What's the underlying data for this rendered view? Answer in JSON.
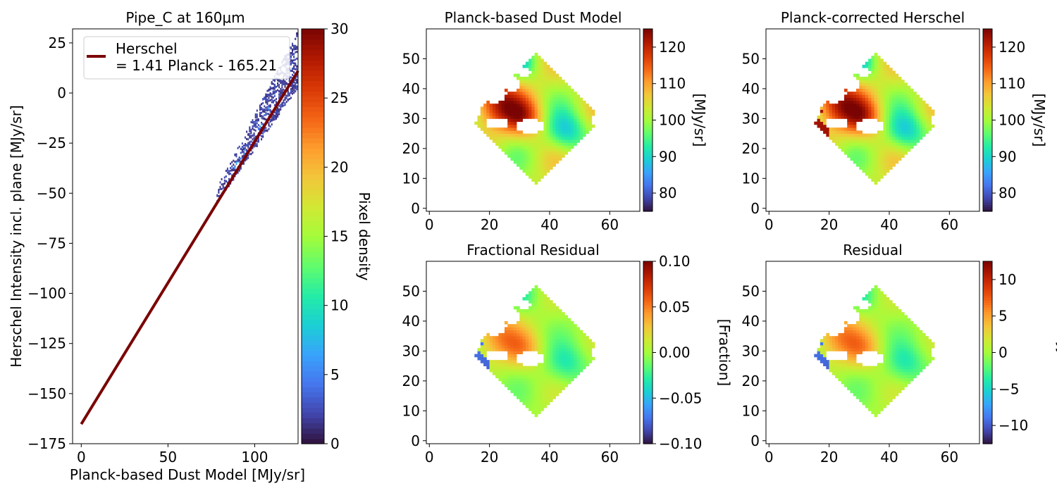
{
  "colormap": [
    "#30123b",
    "#4145ab",
    "#4675ed",
    "#39a2fc",
    "#1bcfd4",
    "#24eca6",
    "#61fc6c",
    "#a4fc3b",
    "#d1e834",
    "#f3c63a",
    "#fe9b2d",
    "#f36315",
    "#d93806",
    "#b11901",
    "#7a0403"
  ],
  "chart_data": [
    {
      "id": "scatter",
      "type": "heatmap",
      "title": "Pipe_C at 160μm",
      "xlabel": "Planck-based Dust Model [MJy/sr]",
      "ylabel": "Herschel Intensity incl. plane [MJy/sr]",
      "xlim": [
        -5,
        125
      ],
      "ylim": [
        -175,
        32
      ],
      "xticks": [
        0,
        50,
        100
      ],
      "yticks": [
        -175,
        -150,
        -125,
        -100,
        -75,
        -50,
        -25,
        0,
        25
      ],
      "fit": {
        "slope": 1.41,
        "intercept": -165.21,
        "x": [
          0,
          125
        ],
        "color": "#7a0403"
      },
      "legend": {
        "line1": "Herschel",
        "line2": "= 1.41 Planck - 165.21",
        "position": "upper left"
      },
      "density_band": {
        "x_range": [
          78,
          124
        ],
        "typical_density": [
          1,
          3
        ],
        "peak_density": 8
      },
      "colorbar": {
        "label": "Pixel density",
        "range": [
          0,
          30
        ],
        "ticks": [
          0,
          5,
          10,
          15,
          20,
          25,
          30
        ]
      }
    },
    {
      "id": "model",
      "type": "heatmap",
      "title": "Planck-based Dust Model",
      "xlim": [
        -1,
        70
      ],
      "ylim": [
        -1,
        60
      ],
      "xticks": [
        0,
        20,
        40,
        60
      ],
      "yticks": [
        0,
        10,
        20,
        30,
        40,
        50
      ],
      "footprint": "rotated square centred near (35, 30), corners near (30, 52), (58, 30), (36, 7), (11, 35)",
      "colorbar": {
        "label": "[MJy/sr]",
        "range": [
          75,
          125
        ],
        "ticks": [
          80,
          90,
          100,
          110,
          120
        ]
      }
    },
    {
      "id": "corrected",
      "type": "heatmap",
      "title": "Planck-corrected Herschel",
      "xlim": [
        -1,
        70
      ],
      "ylim": [
        -1,
        60
      ],
      "xticks": [
        0,
        20,
        40,
        60
      ],
      "yticks": [
        0,
        10,
        20,
        30,
        40,
        50
      ],
      "colorbar": {
        "label": "[MJy/sr]",
        "range": [
          75,
          125
        ],
        "ticks": [
          80,
          90,
          100,
          110,
          120
        ]
      }
    },
    {
      "id": "fractional",
      "type": "heatmap",
      "title": "Fractional Residual",
      "xlim": [
        -1,
        70
      ],
      "ylim": [
        -1,
        60
      ],
      "xticks": [
        0,
        20,
        40,
        60
      ],
      "yticks": [
        0,
        10,
        20,
        30,
        40,
        50
      ],
      "colorbar": {
        "label": "[Fraction]",
        "range": [
          -0.1,
          0.1
        ],
        "ticks": [
          -0.1,
          -0.05,
          0.0,
          0.05,
          0.1
        ],
        "ticklabels": [
          "−0.10",
          "−0.05",
          "0.00",
          "0.05",
          "0.10"
        ]
      }
    },
    {
      "id": "residual",
      "type": "heatmap",
      "title": "Residual",
      "xlim": [
        -1,
        70
      ],
      "ylim": [
        -1,
        60
      ],
      "xticks": [
        0,
        20,
        40,
        60
      ],
      "yticks": [
        0,
        10,
        20,
        30,
        40,
        50
      ],
      "colorbar": {
        "label": "[MJy/sr]",
        "range": [
          -12.5,
          12.5
        ],
        "ticks": [
          -10,
          -5,
          0,
          5,
          10
        ],
        "ticklabels": [
          "−10",
          "−5",
          "0",
          "5",
          "10"
        ]
      }
    }
  ]
}
